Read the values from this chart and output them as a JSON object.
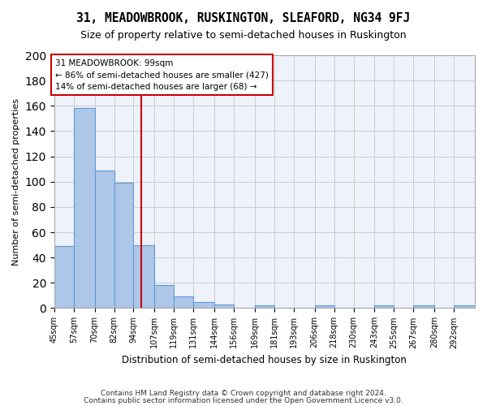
{
  "title": "31, MEADOWBROOK, RUSKINGTON, SLEAFORD, NG34 9FJ",
  "subtitle": "Size of property relative to semi-detached houses in Ruskington",
  "xlabel": "Distribution of semi-detached houses by size in Ruskington",
  "ylabel": "Number of semi-detached properties",
  "footer1": "Contains HM Land Registry data © Crown copyright and database right 2024.",
  "footer2": "Contains public sector information licensed under the Open Government Licence v3.0.",
  "annotation_line1": "31 MEADOWBROOK: 99sqm",
  "annotation_line2": "← 86% of semi-detached houses are smaller (427)",
  "annotation_line3": "14% of semi-detached houses are larger (68) →",
  "property_size": 99,
  "bar_edges": [
    45,
    57,
    70,
    82,
    94,
    107,
    119,
    131,
    144,
    156,
    169,
    181,
    193,
    206,
    218,
    230,
    243,
    255,
    267,
    280,
    292,
    305
  ],
  "bar_heights": [
    49,
    158,
    109,
    99,
    50,
    18,
    9,
    5,
    3,
    0,
    2,
    0,
    0,
    2,
    0,
    0,
    2,
    0,
    2,
    0,
    2
  ],
  "bar_color": "#aec6e8",
  "bar_edge_color": "#5b9bd5",
  "vline_color": "#cc0000",
  "annotation_box_color": "#cc0000",
  "background_color": "#eef2fb",
  "grid_color": "#cccccc",
  "ylim": [
    0,
    200
  ],
  "yticks": [
    0,
    20,
    40,
    60,
    80,
    100,
    120,
    140,
    160,
    180,
    200
  ]
}
